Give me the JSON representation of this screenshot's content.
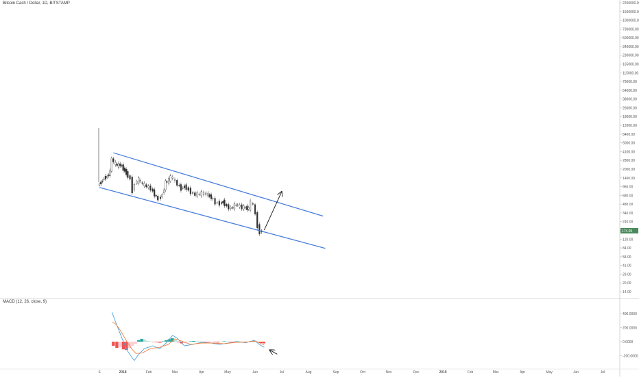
{
  "header": {
    "symbol_title": "Bitcoin Cash / Dollar, 1D, BITSTAMP"
  },
  "macd": {
    "title": "MACD (12, 26, close, 9)"
  },
  "colors": {
    "up": "#26a69a",
    "down": "#ef5350",
    "channel": "#4a7fdc",
    "arrow": "#222222",
    "macd_line": "#4fa3e0",
    "signal_line": "#f0813e",
    "hist_up": "#26a69a",
    "hist_up_light": "#b2dfdb",
    "hist_down": "#ef5350",
    "hist_down_light": "#ffcdd2",
    "price_tag": "#4a8a5c",
    "axis_text": "#555555"
  },
  "chart_data": [
    {
      "type": "line",
      "title": "Bitcoin Cash / Dollar, 1D, BITSTAMP",
      "scale": "log",
      "ylim": [
        14,
        2200000
      ],
      "xlim": [
        "2017-11-18",
        "2019-07-31"
      ],
      "y_tick_labels": [
        "2200000.00",
        "1500000.00",
        "1000000.00",
        "730000.00",
        "500000.00",
        "340000.00",
        "230000.00",
        "165000.00",
        "115000.00",
        "79000.00",
        "54000.00",
        "38000.00",
        "26000.00",
        "18000.00",
        "12000.00",
        "8400.00",
        "6000.00",
        "4100.00",
        "2800.00",
        "2000.00",
        "1400.00",
        "960.00",
        "680.00",
        "480.00",
        "340.00",
        "240.00",
        "168.00",
        "120.00",
        "84.00",
        "58.00",
        "41.00",
        "29.00",
        "20.00",
        "14.00"
      ],
      "x_tick_labels": [
        "S",
        "2018",
        "Feb",
        "Mar",
        "Apr",
        "May",
        "Jun",
        "Jul",
        "Aug",
        "Sep",
        "Oct",
        "Nov",
        "Dec",
        "2019",
        "Feb",
        "Mar",
        "Apr",
        "May",
        "Jun",
        "Jul"
      ],
      "last_price": "174.95",
      "series": [
        {
          "values": [
            {
              "x": "2017-11-18",
              "y": 1150
            },
            {
              "x": "2017-11-25",
              "y": 1300
            },
            {
              "x": "2017-12-02",
              "y": 1550
            },
            {
              "x": "2017-12-09",
              "y": 1650
            },
            {
              "x": "2017-12-16",
              "y": 2000
            },
            {
              "x": "2017-12-20",
              "y": 3600
            },
            {
              "x": "2017-12-25",
              "y": 2900
            },
            {
              "x": "2018-01-01",
              "y": 2600
            },
            {
              "x": "2018-01-08",
              "y": 2700
            },
            {
              "x": "2018-01-15",
              "y": 2300
            },
            {
              "x": "2018-01-22",
              "y": 1900
            },
            {
              "x": "2018-02-01",
              "y": 1500
            },
            {
              "x": "2018-02-06",
              "y": 900
            },
            {
              "x": "2018-02-12",
              "y": 1250
            },
            {
              "x": "2018-02-20",
              "y": 1450
            },
            {
              "x": "2018-03-01",
              "y": 1200
            },
            {
              "x": "2018-03-10",
              "y": 1100
            },
            {
              "x": "2018-03-20",
              "y": 1000
            },
            {
              "x": "2018-04-01",
              "y": 700
            },
            {
              "x": "2018-04-07",
              "y": 650
            },
            {
              "x": "2018-04-15",
              "y": 780
            },
            {
              "x": "2018-04-22",
              "y": 1300
            },
            {
              "x": "2018-04-30",
              "y": 1400
            },
            {
              "x": "2018-05-05",
              "y": 1650
            },
            {
              "x": "2018-05-10",
              "y": 1500
            },
            {
              "x": "2018-05-20",
              "y": 1200
            },
            {
              "x": "2018-05-28",
              "y": 1000
            },
            {
              "x": "2018-06-05",
              "y": 1100
            },
            {
              "x": "2018-06-15",
              "y": 950
            },
            {
              "x": "2018-06-25",
              "y": 800
            },
            {
              "x": "2018-07-05",
              "y": 780
            },
            {
              "x": "2018-07-15",
              "y": 820
            },
            {
              "x": "2018-07-25",
              "y": 800
            },
            {
              "x": "2018-08-05",
              "y": 700
            },
            {
              "x": "2018-08-15",
              "y": 560
            },
            {
              "x": "2018-08-25",
              "y": 540
            },
            {
              "x": "2018-09-01",
              "y": 580
            },
            {
              "x": "2018-09-10",
              "y": 480
            },
            {
              "x": "2018-09-20",
              "y": 440
            },
            {
              "x": "2018-10-01",
              "y": 520
            },
            {
              "x": "2018-10-15",
              "y": 460
            },
            {
              "x": "2018-10-30",
              "y": 440
            },
            {
              "x": "2018-11-05",
              "y": 560
            },
            {
              "x": "2018-11-10",
              "y": 510
            },
            {
              "x": "2018-11-15",
              "y": 350
            },
            {
              "x": "2018-11-20",
              "y": 210
            },
            {
              "x": "2018-11-25",
              "y": 165
            },
            {
              "x": "2018-12-01",
              "y": 175
            }
          ]
        },
        {
          "name": "",
          "type": "trendline",
          "values": [
            {
              "x": "2017-11-18",
              "y": 1050
            },
            {
              "x": "2019-04-20",
              "y": 84
            }
          ]
        },
        {
          "name": "",
          "type": "trendline",
          "values": [
            {
              "x": "2017-12-20",
              "y": 4400
            },
            {
              "x": "2019-04-15",
              "y": 320
            }
          ]
        }
      ],
      "annotations": [
        {
          "type": "arrow",
          "from": {
            "x": "2018-12-01",
            "y": 180
          },
          "to": {
            "x": "2019-01-10",
            "y": 880
          }
        }
      ]
    },
    {
      "type": "line",
      "title": "MACD (12, 26, close, 9)",
      "ylim": [
        -300000,
        450000
      ],
      "y_tick_labels": [
        "400.0000",
        "200.0000",
        "0.0000",
        "-200.0000"
      ],
      "series": [
        {
          "name": "",
          "values": [
            {
              "x": "2017-12-17",
              "y": 420000
            },
            {
              "x": "2017-12-24",
              "y": 300000
            },
            {
              "x": "2018-01-01",
              "y": 170000
            },
            {
              "x": "2018-01-10",
              "y": 30000
            },
            {
              "x": "2018-01-20",
              "y": -120000
            },
            {
              "x": "2018-02-01",
              "y": -230000
            },
            {
              "x": "2018-02-06",
              "y": -270000
            },
            {
              "x": "2018-02-15",
              "y": -190000
            },
            {
              "x": "2018-03-01",
              "y": -100000
            },
            {
              "x": "2018-03-20",
              "y": -60000
            },
            {
              "x": "2018-04-05",
              "y": -100000
            },
            {
              "x": "2018-04-20",
              "y": -20000
            },
            {
              "x": "2018-05-05",
              "y": 90000
            },
            {
              "x": "2018-05-15",
              "y": 50000
            },
            {
              "x": "2018-06-01",
              "y": -60000
            },
            {
              "x": "2018-06-20",
              "y": -40000
            },
            {
              "x": "2018-07-10",
              "y": -10000
            },
            {
              "x": "2018-08-01",
              "y": -20000
            },
            {
              "x": "2018-08-20",
              "y": -40000
            },
            {
              "x": "2018-09-10",
              "y": -20000
            },
            {
              "x": "2018-10-01",
              "y": 0
            },
            {
              "x": "2018-10-20",
              "y": -15000
            },
            {
              "x": "2018-11-08",
              "y": 20000
            },
            {
              "x": "2018-11-20",
              "y": -40000
            },
            {
              "x": "2018-12-01",
              "y": -80000
            }
          ]
        },
        {
          "name": "",
          "values": [
            {
              "x": "2017-12-17",
              "y": 280000
            },
            {
              "x": "2017-12-24",
              "y": 260000
            },
            {
              "x": "2018-01-01",
              "y": 200000
            },
            {
              "x": "2018-01-10",
              "y": 110000
            },
            {
              "x": "2018-01-20",
              "y": 0
            },
            {
              "x": "2018-02-01",
              "y": -110000
            },
            {
              "x": "2018-02-10",
              "y": -170000
            },
            {
              "x": "2018-02-25",
              "y": -160000
            },
            {
              "x": "2018-03-15",
              "y": -100000
            },
            {
              "x": "2018-04-05",
              "y": -80000
            },
            {
              "x": "2018-04-25",
              "y": -40000
            },
            {
              "x": "2018-05-10",
              "y": 40000
            },
            {
              "x": "2018-05-25",
              "y": 10000
            },
            {
              "x": "2018-06-15",
              "y": -40000
            },
            {
              "x": "2018-07-10",
              "y": -20000
            },
            {
              "x": "2018-08-05",
              "y": -20000
            },
            {
              "x": "2018-09-01",
              "y": -30000
            },
            {
              "x": "2018-09-25",
              "y": -10000
            },
            {
              "x": "2018-10-25",
              "y": -5000
            },
            {
              "x": "2018-11-10",
              "y": 10000
            },
            {
              "x": "2018-11-25",
              "y": -30000
            },
            {
              "x": "2018-12-01",
              "y": -50000
            }
          ]
        },
        {
          "name": "",
          "type": "histogram",
          "values": [
            {
              "x": "2017-12-20",
              "y": -60000
            },
            {
              "x": "2017-12-28",
              "y": -90000
            },
            {
              "x": "2018-01-05",
              "y": -80000
            },
            {
              "x": "2018-01-12",
              "y": -110000
            },
            {
              "x": "2018-01-19",
              "y": -120000
            },
            {
              "x": "2018-01-26",
              "y": -90000
            },
            {
              "x": "2018-02-02",
              "y": -60000
            },
            {
              "x": "2018-02-09",
              "y": -30000
            },
            {
              "x": "2018-02-16",
              "y": 20000
            },
            {
              "x": "2018-02-23",
              "y": 40000
            },
            {
              "x": "2018-03-02",
              "y": 30000
            },
            {
              "x": "2018-03-09",
              "y": 10000
            },
            {
              "x": "2018-03-16",
              "y": 5000
            },
            {
              "x": "2018-03-23",
              "y": -5000
            },
            {
              "x": "2018-03-30",
              "y": -10000
            },
            {
              "x": "2018-04-06",
              "y": -15000
            },
            {
              "x": "2018-04-13",
              "y": 5000
            },
            {
              "x": "2018-04-20",
              "y": 20000
            },
            {
              "x": "2018-04-27",
              "y": 35000
            },
            {
              "x": "2018-05-04",
              "y": 50000
            },
            {
              "x": "2018-05-11",
              "y": 20000
            },
            {
              "x": "2018-05-18",
              "y": -10000
            },
            {
              "x": "2018-05-25",
              "y": -25000
            },
            {
              "x": "2018-06-01",
              "y": -20000
            },
            {
              "x": "2018-06-08",
              "y": -10000
            },
            {
              "x": "2018-06-15",
              "y": 5000
            },
            {
              "x": "2018-06-22",
              "y": 10000
            },
            {
              "x": "2018-06-29",
              "y": 8000
            },
            {
              "x": "2018-07-06",
              "y": 5000
            },
            {
              "x": "2018-07-13",
              "y": 4000
            },
            {
              "x": "2018-07-20",
              "y": -4000
            },
            {
              "x": "2018-07-27",
              "y": -6000
            },
            {
              "x": "2018-08-03",
              "y": -5000
            },
            {
              "x": "2018-08-10",
              "y": -8000
            },
            {
              "x": "2018-08-17",
              "y": -12000
            },
            {
              "x": "2018-08-24",
              "y": -8000
            },
            {
              "x": "2018-08-31",
              "y": 6000
            },
            {
              "x": "2018-09-07",
              "y": 5000
            },
            {
              "x": "2018-09-14",
              "y": -4000
            },
            {
              "x": "2018-09-21",
              "y": -6000
            },
            {
              "x": "2018-09-28",
              "y": 4000
            },
            {
              "x": "2018-10-05",
              "y": 3000
            },
            {
              "x": "2018-10-12",
              "y": -3000
            },
            {
              "x": "2018-10-19",
              "y": -5000
            },
            {
              "x": "2018-10-26",
              "y": -4000
            },
            {
              "x": "2018-11-02",
              "y": 8000
            },
            {
              "x": "2018-11-09",
              "y": 12000
            },
            {
              "x": "2018-11-16",
              "y": -8000
            },
            {
              "x": "2018-11-23",
              "y": -20000
            },
            {
              "x": "2018-11-30",
              "y": -25000
            }
          ]
        }
      ],
      "annotations": [
        {
          "type": "arrow",
          "from": {
            "x": "2018-12-15",
            "y": -180000
          },
          "to": {
            "x": "2018-12-01",
            "y": -120000
          }
        }
      ]
    }
  ]
}
